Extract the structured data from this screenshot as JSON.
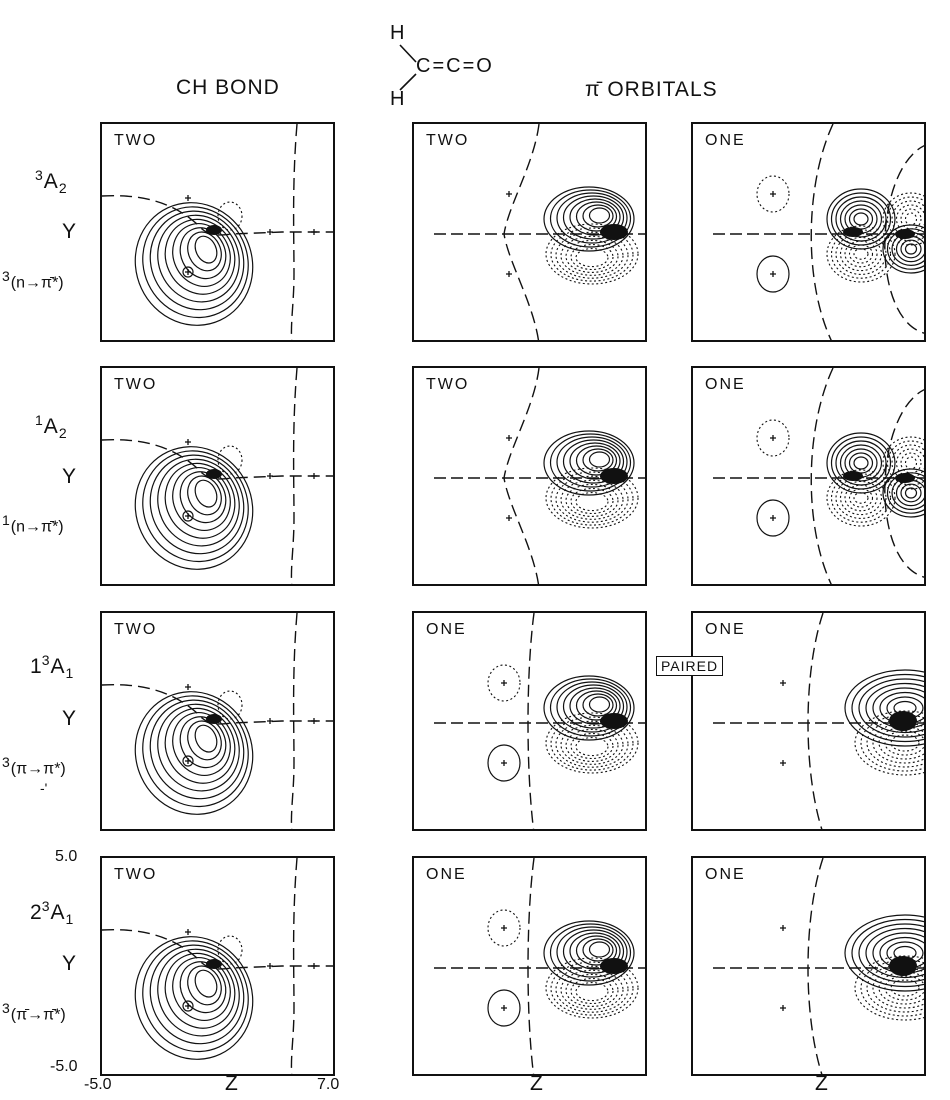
{
  "molecule": {
    "h_top": "H",
    "h_bottom": "H",
    "carbon_group": "C=C=O"
  },
  "columns": {
    "ch_bond": "CH BOND",
    "pi_orbitals": "π̄ ORBITALS"
  },
  "rows": [
    {
      "sup": "3",
      "sym": "A",
      "sub": "2",
      "axis": "Y",
      "trans_sup": "3",
      "trans": "(n→π̄*)",
      "occ": [
        "TWO",
        "TWO",
        "ONE"
      ]
    },
    {
      "sup": "1",
      "sym": "A",
      "sub": "2",
      "axis": "Y",
      "trans_sup": "1",
      "trans": "(n→π̄*)",
      "occ": [
        "TWO",
        "TWO",
        "ONE"
      ]
    },
    {
      "sup": "3",
      "prefix": "1",
      "sym": "A",
      "sub": "1",
      "axis": "Y",
      "trans_sup": "3",
      "trans": "(π→π*)",
      "occ": [
        "TWO",
        "ONE",
        "ONE"
      ]
    },
    {
      "sup": "3",
      "prefix": "2",
      "sym": "A",
      "sub": "1",
      "axis": "Y",
      "trans_sup": "3",
      "trans": "(π̄→π̄*)",
      "occ": [
        "TWO",
        "ONE",
        "ONE"
      ]
    }
  ],
  "paired_label": "PAIRED",
  "axes": {
    "y_max": "5.0",
    "y_min": "-5.0",
    "x_min": "-5.0",
    "x_max": "7.0",
    "x_label": "Z"
  },
  "stray_mark": "-'"
}
